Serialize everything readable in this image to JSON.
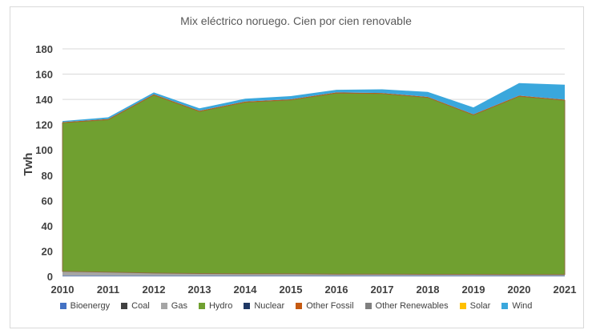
{
  "chart_data": {
    "type": "area",
    "title": "Mix eléctrico noruego. Cien por cien renovable",
    "xlabel": "",
    "ylabel": "Twh",
    "ylim": [
      0,
      180
    ],
    "yticks": [
      0,
      20,
      40,
      60,
      80,
      100,
      120,
      140,
      160,
      180
    ],
    "grid": true,
    "legend_position": "bottom",
    "x": [
      2010,
      2011,
      2012,
      2013,
      2014,
      2015,
      2016,
      2017,
      2018,
      2019,
      2020,
      2021
    ],
    "series": [
      {
        "name": "Bioenergy",
        "color": "#4472c4",
        "values": [
          0.5,
          0.5,
          0.4,
          0.4,
          0.4,
          0.4,
          0.4,
          0.4,
          0.4,
          0.4,
          0.4,
          0.4
        ]
      },
      {
        "name": "Coal",
        "color": "#404040",
        "values": [
          0,
          0,
          0,
          0,
          0,
          0,
          0,
          0,
          0,
          0,
          0,
          0
        ]
      },
      {
        "name": "Gas",
        "color": "#a5a5a5",
        "values": [
          3.4,
          2.8,
          2.2,
          1.8,
          1.6,
          1.6,
          1.4,
          1.4,
          1.2,
          1.2,
          1.0,
          1.0
        ]
      },
      {
        "name": "Hydro",
        "color": "#70a030",
        "values": [
          117.6,
          120.7,
          140.9,
          128.3,
          135.8,
          137.6,
          143.2,
          142.8,
          139.9,
          126.1,
          141.1,
          137.9
        ]
      },
      {
        "name": "Nuclear",
        "color": "#1f3864",
        "values": [
          0,
          0,
          0,
          0,
          0,
          0,
          0,
          0,
          0,
          0,
          0,
          0
        ]
      },
      {
        "name": "Other Fossil",
        "color": "#c55a11",
        "values": [
          0.5,
          0.5,
          0.5,
          0.5,
          0.5,
          0.5,
          0.5,
          0.5,
          0.5,
          0.5,
          0.5,
          0.5
        ]
      },
      {
        "name": "Other Renewables",
        "color": "#7f7f7f",
        "values": [
          0,
          0,
          0,
          0,
          0,
          0,
          0,
          0,
          0,
          0,
          0,
          0
        ]
      },
      {
        "name": "Solar",
        "color": "#ffc000",
        "values": [
          0,
          0,
          0,
          0,
          0,
          0,
          0,
          0,
          0,
          0,
          0,
          0
        ]
      },
      {
        "name": "Wind",
        "color": "#3aa7dc",
        "values": [
          0.9,
          1.3,
          1.5,
          1.9,
          2.2,
          2.5,
          2.1,
          2.9,
          3.9,
          5.5,
          9.9,
          11.8
        ]
      }
    ]
  }
}
